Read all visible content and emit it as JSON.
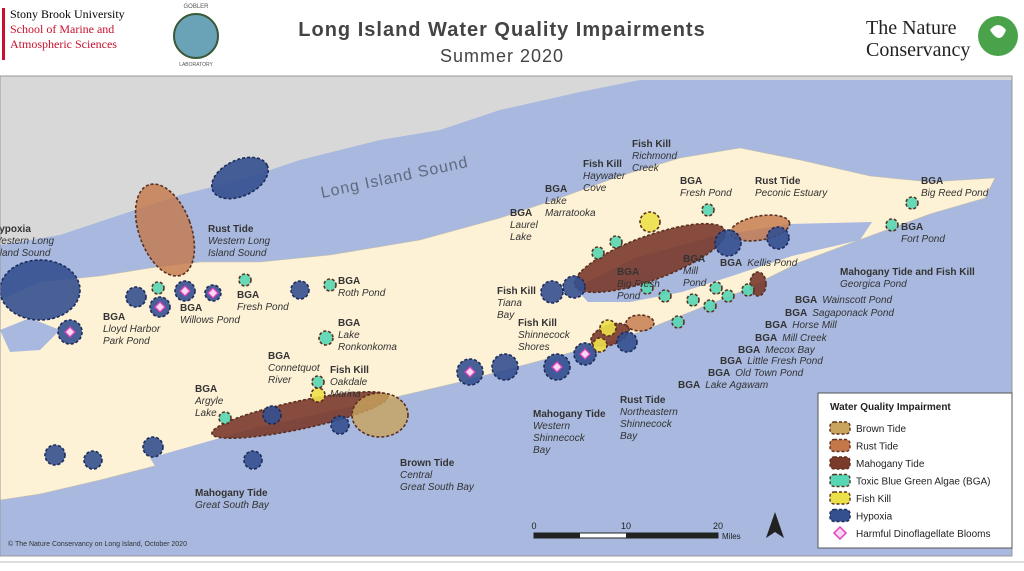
{
  "header": {
    "title": "Long Island Water Quality Impairments",
    "subtitle": "Summer 2020",
    "university": [
      "Stony Brook University",
      "School of Marine and",
      "Atmospheric Sciences"
    ],
    "lab_logo": [
      "GOBLER",
      "LABORATORY"
    ],
    "conservancy": [
      "The Nature",
      "Conservancy"
    ]
  },
  "map": {
    "water_label": "Long Island Sound",
    "labels": [
      {
        "kind": "Hypoxia",
        "place": [
          "Western Long",
          "Island Sound"
        ]
      },
      {
        "kind": "Rust Tide",
        "place": [
          "Western Long",
          "Island Sound"
        ]
      },
      {
        "kind": "BGA",
        "place": [
          "Lloyd Harbor",
          "Park Pond"
        ]
      },
      {
        "kind": "BGA",
        "place": [
          "Willows Pond"
        ]
      },
      {
        "kind": "BGA",
        "place": [
          "Fresh Pond"
        ]
      },
      {
        "kind": "BGA",
        "place": [
          "Roth Pond"
        ]
      },
      {
        "kind": "BGA",
        "place": [
          "Lake",
          "Ronkonkoma"
        ]
      },
      {
        "kind": "BGA",
        "place": [
          "Connetquot",
          "River"
        ]
      },
      {
        "kind": "Fish Kill",
        "place": [
          "Oakdale",
          "Marina"
        ]
      },
      {
        "kind": "BGA",
        "place": [
          "Argyle",
          "Lake"
        ]
      },
      {
        "kind": "Mahogany Tide",
        "place": [
          "Great South Bay"
        ]
      },
      {
        "kind": "Brown Tide",
        "place": [
          "Central",
          "Great South Bay"
        ]
      },
      {
        "kind": "BGA",
        "place": [
          "Laurel",
          "Lake"
        ]
      },
      {
        "kind": "BGA",
        "place": [
          "Lake",
          "Marratooka"
        ]
      },
      {
        "kind": "Fish Kill",
        "place": [
          "Haywater",
          "Cove"
        ]
      },
      {
        "kind": "Fish Kill",
        "place": [
          "Richmond",
          "Creek"
        ]
      },
      {
        "kind": "BGA",
        "place": [
          "Fresh Pond"
        ]
      },
      {
        "kind": "Rust Tide",
        "place": [
          "Peconic Estuary"
        ]
      },
      {
        "kind": "BGA",
        "place": [
          "Big Reed Pond"
        ]
      },
      {
        "kind": "BGA",
        "place": [
          "Fort Pond"
        ]
      },
      {
        "kind": "BGA",
        "place": [
          "Big Fresh",
          "Pond"
        ]
      },
      {
        "kind": "BGA",
        "place": [
          "Mill",
          "Pond"
        ]
      },
      {
        "kind": "BGA",
        "place": [
          "Kellis Pond"
        ]
      },
      {
        "kind": "Mahogany Tide and Fish Kill",
        "place": [
          "Georgica Pond"
        ]
      },
      {
        "kind": "Fish Kill",
        "place": [
          "Tiana",
          "Bay"
        ]
      },
      {
        "kind": "Fish Kill",
        "place": [
          "Shinnecock",
          "Shores"
        ]
      },
      {
        "kind": "BGA",
        "place": [
          "Wainscott Pond"
        ]
      },
      {
        "kind": "BGA",
        "place": [
          "Sagaponack Pond"
        ]
      },
      {
        "kind": "BGA",
        "place": [
          "Horse Mill"
        ]
      },
      {
        "kind": "BGA",
        "place": [
          "Mill Creek"
        ]
      },
      {
        "kind": "BGA",
        "place": [
          "Mecox Bay"
        ]
      },
      {
        "kind": "BGA",
        "place": [
          "Little Fresh Pond"
        ]
      },
      {
        "kind": "BGA",
        "place": [
          "Old Town Pond"
        ]
      },
      {
        "kind": "BGA",
        "place": [
          "Lake Agawam"
        ]
      },
      {
        "kind": "Mahogany Tide",
        "place": [
          "Western",
          "Shinnecock",
          "Bay"
        ]
      },
      {
        "kind": "Rust Tide",
        "place": [
          "Northeastern",
          "Shinnecock",
          "Bay"
        ]
      }
    ]
  },
  "legend": {
    "title": "Water Quality Impairment",
    "items": [
      {
        "name": "Brown Tide",
        "color": "#c9a45c"
      },
      {
        "name": "Rust Tide",
        "color": "#c4784a"
      },
      {
        "name": "Mahogany Tide",
        "color": "#7a3a2c"
      },
      {
        "name": "Toxic Blue Green Algae (BGA)",
        "color": "#58d6b4"
      },
      {
        "name": "Fish Kill",
        "color": "#ece04a"
      },
      {
        "name": "Hypoxia",
        "color": "#34508f"
      },
      {
        "name": "Harmful Dinoflagellate Blooms",
        "color": "#e040c0"
      }
    ]
  },
  "scale": {
    "ticks": [
      "0",
      "10",
      "20"
    ],
    "unit": "Miles"
  },
  "credit": "© The Nature Conservancy on Long Island, October 2020"
}
